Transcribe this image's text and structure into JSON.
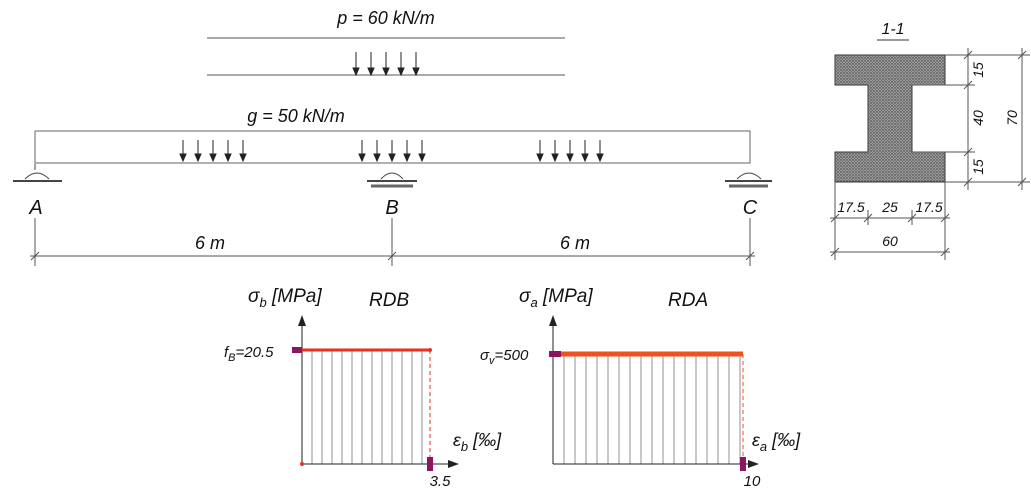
{
  "beam": {
    "live_load": "p = 60 kN/m",
    "dead_load": "g = 50 kN/m",
    "support_a": "A",
    "support_b": "B",
    "support_c": "C",
    "span_1": "6 m",
    "span_2": "6 m"
  },
  "section": {
    "title": "1-1",
    "dim_top_flange": "15",
    "dim_web_height": "40",
    "dim_bottom_flange": "15",
    "dim_total_height": "70",
    "dim_left_flange": "17.5",
    "dim_web_width": "25",
    "dim_right_flange": "17.5",
    "dim_total_width": "60"
  },
  "concrete_diagram": {
    "axis_y_symbol": "σ",
    "axis_y_sub": "b",
    "axis_y_unit": " [MPa]",
    "title": "RDB",
    "axis_x_symbol": "ε",
    "axis_x_sub": "b",
    "axis_x_unit": " [‰]",
    "strength_symbol": "f",
    "strength_sub": "B",
    "strength_value": "=20.5",
    "ultimate_strain": "3.5",
    "color": "#e8321e"
  },
  "steel_diagram": {
    "axis_y_symbol": "σ",
    "axis_y_sub": "a",
    "axis_y_unit": " [MPa]",
    "title": "RDA",
    "axis_x_symbol": "ε",
    "axis_x_sub": "a",
    "axis_x_unit": " [‰]",
    "yield_symbol": "σ",
    "yield_sub": "v",
    "yield_value": "=500",
    "ultimate_strain": "10",
    "color": "#f0521e"
  },
  "marker_color": "#8b1560"
}
